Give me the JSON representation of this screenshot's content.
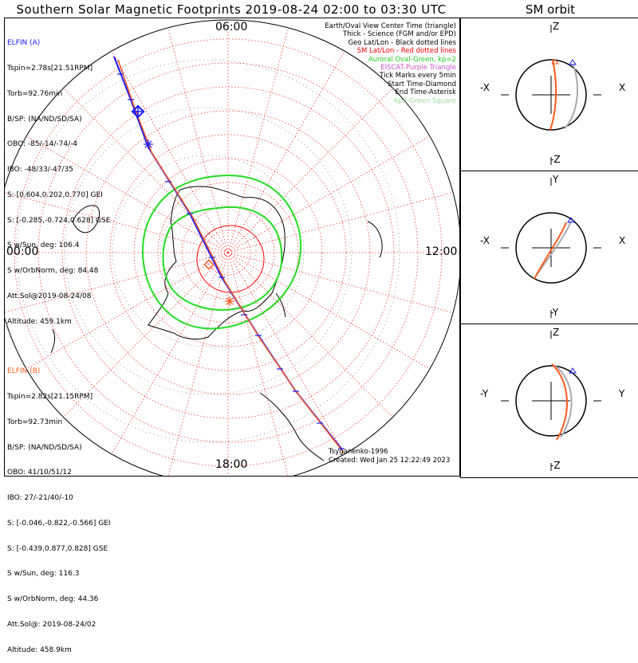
{
  "title": "Southern Solar Magnetic Footprints 2019-08-24 02:00 to 03:30 UTC",
  "orbit_title": "SM orbit",
  "time_labels": {
    "top": "06:00",
    "left": "00:00",
    "right": "12:00",
    "bottom": "18:00"
  },
  "elfin_a": {
    "name": "ELFIN (A)",
    "color": "#1a1aff",
    "lines": [
      "Tspin=2.78s[21.51RPM]",
      "Torb=92.76min",
      "B/SP: (NA/ND/SD/SA)",
      "OBO: -85/-14/-74/-4",
      "IBO: -48/33/-47/35",
      "S: [0.604,0.202,0.770] GEI",
      "S: [-0.285,-0.724,0.628] GSE",
      "S w/Sun, deg: 106.4",
      "S w/OrbNorm, deg: 84.48",
      "Att.Sol@2019-08-24/08",
      "Altitude: 459.1km"
    ]
  },
  "elfin_b": {
    "name": "ELFIN (B)",
    "color": "#ff5a1e",
    "lines": [
      "Tspin=2.82s[21.15RPM]",
      "Torb=92.73min",
      "B/SP: (NA/ND/SD/SA)",
      "OBO: 41/10/51/12",
      "IBO: 27/-21/40/-10",
      "S: [-0.046,-0.822,-0.566] GEI",
      "S: [-0.439,0.877,0.828] GSE",
      "S w/Sun, deg: 116.3",
      "S w/OrbNorm, deg: 44.36",
      "Att.Sol@: 2019-08-24/02",
      "Altitude: 458.9km"
    ]
  },
  "legend": [
    {
      "text": "Earth/Oval View Center Time (triangle)",
      "color": "#000000"
    },
    {
      "text": "Thick - Science (FGM and/or EPD)",
      "color": "#000000"
    },
    {
      "text": "Geo Lat/Lon - Black dotted lines",
      "color": "#000000"
    },
    {
      "text": "SM Lat/Lon - Red dotted lines",
      "color": "#ff0000"
    },
    {
      "text": "Auroral Oval-Green, kp=2",
      "color": "#22cc22"
    },
    {
      "text": "EISCAT-Purple Triangle",
      "color": "#cc55cc"
    },
    {
      "text": "Tick Marks every 5min",
      "color": "#000000"
    },
    {
      "text": "Start Time-Diamond",
      "color": "#000000"
    },
    {
      "text": "End Time-Asterisk",
      "color": "#000000"
    },
    {
      "text": "Kp2-Green Square",
      "color": "#99dd99"
    }
  ],
  "credits": [
    "Tsyganenko-1996",
    "Created: Wed Jan 25 12:22:49 2023"
  ],
  "orbit_panels": [
    {
      "top": "Z",
      "bottom": "-Z",
      "left": "-X",
      "right": "X"
    },
    {
      "top": "Y",
      "bottom": "-Y",
      "left": "-X",
      "right": "X"
    },
    {
      "top": "Z",
      "bottom": "-Z",
      "left": "-Y",
      "right": "Y"
    }
  ],
  "colors": {
    "grid_red": "#ff3b3b",
    "oval_green": "#22dd22",
    "elfin_a": "#1a1aff",
    "elfin_b": "#ff5a1e",
    "orbit_gray": "#aaaaaa"
  }
}
